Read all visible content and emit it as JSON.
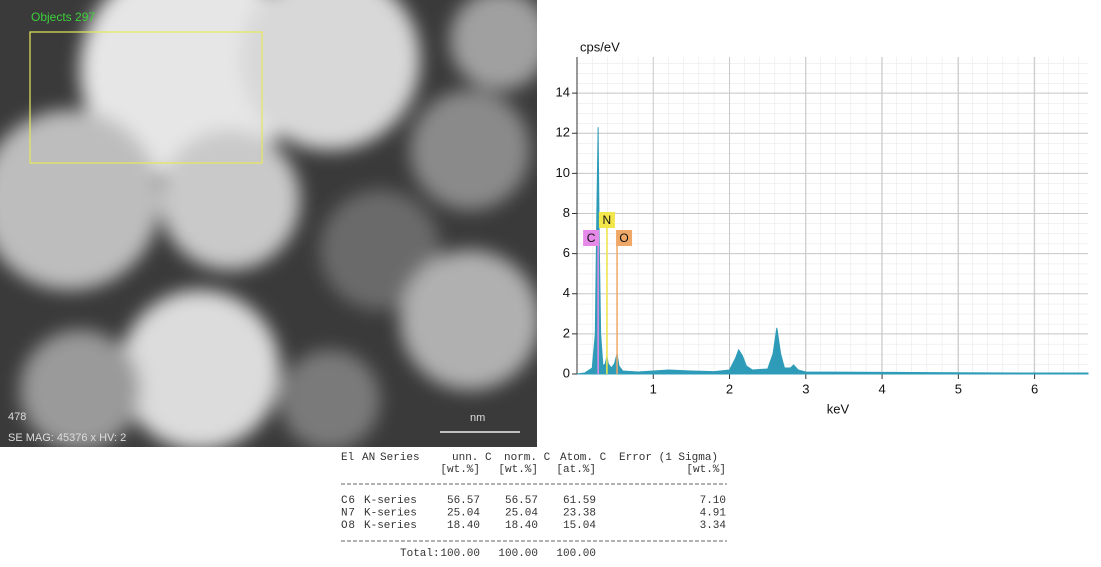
{
  "image": {
    "overlay_title": "Objects 297",
    "corner_label": "478",
    "info": "SE MAG: 45376 x HV: 2",
    "scale_label": "nm"
  },
  "chart_data": {
    "type": "area",
    "y_label": "cps/eV",
    "x_label": "keV",
    "x": [
      0.0,
      0.1,
      0.2,
      0.24,
      0.26,
      0.277,
      0.29,
      0.31,
      0.34,
      0.37,
      0.392,
      0.41,
      0.45,
      0.49,
      0.525,
      0.55,
      0.6,
      0.8,
      1.0,
      1.2,
      1.5,
      1.8,
      2.0,
      2.08,
      2.12,
      2.17,
      2.22,
      2.3,
      2.5,
      2.57,
      2.62,
      2.67,
      2.72,
      2.8,
      2.84,
      2.9,
      3.0,
      4.0,
      5.0,
      6.0,
      6.7
    ],
    "series": [
      {
        "color": "#2e9cb8",
        "values": [
          0,
          0.05,
          0.3,
          2,
          8,
          12.3,
          7,
          2,
          0.4,
          0.5,
          0.9,
          0.5,
          0.3,
          0.5,
          1.0,
          0.4,
          0.15,
          0.1,
          0.15,
          0.2,
          0.15,
          0.12,
          0.2,
          0.8,
          1.2,
          0.9,
          0.4,
          0.2,
          0.25,
          1.0,
          2.3,
          1.0,
          0.3,
          0.3,
          0.45,
          0.2,
          0.1,
          0.08,
          0.06,
          0.05,
          0.05
        ]
      }
    ],
    "markers": [
      {
        "label": "C",
        "x": 0.277,
        "color": "#e58ae8"
      },
      {
        "label": "N",
        "x": 0.392,
        "color": "#f2e64a"
      },
      {
        "label": "O",
        "x": 0.525,
        "color": "#f0a868"
      }
    ],
    "xlim": [
      0,
      6.7
    ],
    "ylim": [
      0,
      15.8
    ],
    "xticks": [
      1,
      2,
      3,
      4,
      5,
      6
    ],
    "yticks": [
      0,
      2,
      4,
      6,
      8,
      10,
      12,
      14
    ],
    "grid": true
  },
  "table": {
    "columns": [
      "El",
      "AN",
      "Series",
      "unn. C",
      "norm. C",
      "Atom. C",
      "Error (1 Sigma)"
    ],
    "units": [
      "[wt.%]",
      "[wt.%]",
      "[at.%]",
      "[wt.%]"
    ],
    "rows": [
      [
        "C",
        "6",
        "K-series",
        "56.57",
        "56.57",
        "61.59",
        "7.10"
      ],
      [
        "N",
        "7",
        "K-series",
        "25.04",
        "25.04",
        "23.38",
        "4.91"
      ],
      [
        "O",
        "8",
        "K-series",
        "18.40",
        "18.40",
        "15.04",
        "3.34"
      ]
    ],
    "total": {
      "label": "Total:",
      "values": [
        "100.00",
        "100.00",
        "100.00"
      ]
    }
  }
}
